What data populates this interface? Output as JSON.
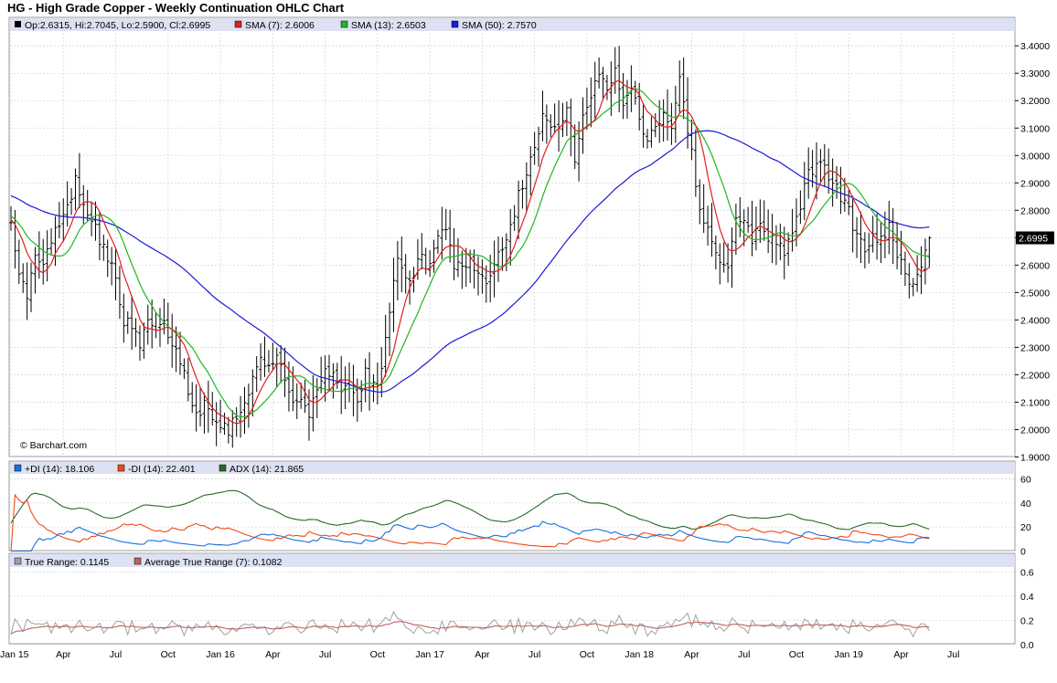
{
  "title": "HG - High Grade Copper - Weekly Continuation OHLC Chart",
  "watermark": "© Barchart.com",
  "colors": {
    "price_bars": "#000000",
    "sma7": "#e0201c",
    "sma13": "#1fb81f",
    "sma50": "#1a1ad6",
    "plus_di": "#1a6fe0",
    "minus_di": "#f04a1a",
    "adx": "#2a6a2a",
    "true_range": "#a0a0a0",
    "avg_true_range": "#c06060",
    "legend_bg": "#dde1f2",
    "grid": "#d8d8d8"
  },
  "legend_price": {
    "ohlc": "Op:2.6315, Hi:2.7045, Lo:2.5900, Cl:2.6995",
    "sma7": "SMA (7): 2.6006",
    "sma13": "SMA (13): 2.6503",
    "sma50": "SMA (50): 2.7570"
  },
  "legend_dmi": {
    "plus_di": "+DI (14): 18.106",
    "minus_di": "-DI (14): 22.401",
    "adx": "ADX (14): 21.865"
  },
  "legend_tr": {
    "tr": "True Range: 0.1145",
    "atr": "Average True Range (7): 0.1082"
  },
  "chart_data": {
    "type": "line",
    "price_axis": {
      "ylim": [
        1.9,
        3.45
      ],
      "ticks": [
        "1.9000",
        "2.0000",
        "2.1000",
        "2.2000",
        "2.3000",
        "2.4000",
        "2.5000",
        "2.6000",
        "2.7000",
        "2.8000",
        "2.9000",
        "3.0000",
        "3.1000",
        "3.2000",
        "3.3000",
        "3.4000"
      ],
      "last_price_label": "2.6995"
    },
    "dmi_axis": {
      "ylim": [
        0,
        65
      ],
      "ticks": [
        "0",
        "20",
        "40",
        "60"
      ]
    },
    "tr_axis": {
      "ylim": [
        0,
        0.68
      ],
      "ticks": [
        "0.0",
        "0.2",
        "0.4",
        "0.6"
      ]
    },
    "x_tick_labels": [
      "Jan 15",
      "Apr",
      "Jul",
      "Oct",
      "Jan 16",
      "Apr",
      "Jul",
      "Oct",
      "Jan 17",
      "Apr",
      "Jul",
      "Oct",
      "Jan 18",
      "Apr",
      "Jul",
      "Oct",
      "Jan 19",
      "Apr",
      "Jul"
    ],
    "x_tick_weeks": [
      0,
      13,
      26,
      39,
      52,
      65,
      78,
      91,
      104,
      117,
      130,
      143,
      156,
      169,
      182,
      195,
      208,
      221,
      234
    ],
    "close_anchors": [
      [
        0,
        2.78
      ],
      [
        2,
        2.55
      ],
      [
        4,
        2.5
      ],
      [
        6,
        2.62
      ],
      [
        8,
        2.6
      ],
      [
        10,
        2.68
      ],
      [
        12,
        2.76
      ],
      [
        14,
        2.8
      ],
      [
        16,
        2.93
      ],
      [
        18,
        2.82
      ],
      [
        20,
        2.78
      ],
      [
        22,
        2.7
      ],
      [
        24,
        2.62
      ],
      [
        26,
        2.55
      ],
      [
        28,
        2.4
      ],
      [
        30,
        2.37
      ],
      [
        32,
        2.3
      ],
      [
        34,
        2.4
      ],
      [
        36,
        2.35
      ],
      [
        38,
        2.38
      ],
      [
        40,
        2.32
      ],
      [
        42,
        2.25
      ],
      [
        44,
        2.15
      ],
      [
        46,
        2.05
      ],
      [
        48,
        2.1
      ],
      [
        50,
        2.06
      ],
      [
        52,
        2.03
      ],
      [
        54,
        2.0
      ],
      [
        56,
        2.05
      ],
      [
        58,
        2.1
      ],
      [
        60,
        2.2
      ],
      [
        62,
        2.25
      ],
      [
        64,
        2.22
      ],
      [
        66,
        2.27
      ],
      [
        68,
        2.2
      ],
      [
        70,
        2.1
      ],
      [
        72,
        2.1
      ],
      [
        74,
        2.07
      ],
      [
        76,
        2.12
      ],
      [
        78,
        2.2
      ],
      [
        80,
        2.23
      ],
      [
        82,
        2.15
      ],
      [
        84,
        2.15
      ],
      [
        86,
        2.1
      ],
      [
        88,
        2.2
      ],
      [
        90,
        2.15
      ],
      [
        92,
        2.2
      ],
      [
        94,
        2.45
      ],
      [
        96,
        2.65
      ],
      [
        98,
        2.55
      ],
      [
        100,
        2.58
      ],
      [
        102,
        2.62
      ],
      [
        104,
        2.6
      ],
      [
        106,
        2.7
      ],
      [
        108,
        2.75
      ],
      [
        110,
        2.6
      ],
      [
        112,
        2.6
      ],
      [
        114,
        2.62
      ],
      [
        116,
        2.56
      ],
      [
        118,
        2.55
      ],
      [
        120,
        2.6
      ],
      [
        122,
        2.68
      ],
      [
        124,
        2.75
      ],
      [
        126,
        2.85
      ],
      [
        128,
        2.95
      ],
      [
        130,
        3.05
      ],
      [
        132,
        3.15
      ],
      [
        134,
        3.1
      ],
      [
        136,
        3.1
      ],
      [
        138,
        3.15
      ],
      [
        140,
        3.0
      ],
      [
        142,
        3.15
      ],
      [
        144,
        3.2
      ],
      [
        146,
        3.3
      ],
      [
        148,
        3.25
      ],
      [
        150,
        3.3
      ],
      [
        152,
        3.2
      ],
      [
        154,
        3.25
      ],
      [
        156,
        3.15
      ],
      [
        158,
        3.05
      ],
      [
        160,
        3.12
      ],
      [
        162,
        3.15
      ],
      [
        164,
        3.1
      ],
      [
        166,
        3.3
      ],
      [
        168,
        3.1
      ],
      [
        170,
        2.9
      ],
      [
        172,
        2.75
      ],
      [
        174,
        2.7
      ],
      [
        176,
        2.62
      ],
      [
        178,
        2.6
      ],
      [
        180,
        2.75
      ],
      [
        182,
        2.75
      ],
      [
        184,
        2.7
      ],
      [
        186,
        2.75
      ],
      [
        188,
        2.7
      ],
      [
        190,
        2.7
      ],
      [
        192,
        2.65
      ],
      [
        194,
        2.7
      ],
      [
        196,
        2.82
      ],
      [
        198,
        2.95
      ],
      [
        200,
        2.96
      ],
      [
        202,
        2.95
      ],
      [
        204,
        2.9
      ],
      [
        206,
        2.85
      ],
      [
        208,
        2.8
      ],
      [
        210,
        2.7
      ],
      [
        212,
        2.65
      ],
      [
        214,
        2.7
      ],
      [
        216,
        2.7
      ],
      [
        218,
        2.75
      ],
      [
        220,
        2.65
      ],
      [
        222,
        2.55
      ],
      [
        224,
        2.55
      ],
      [
        226,
        2.6
      ],
      [
        228,
        2.7
      ]
    ]
  }
}
